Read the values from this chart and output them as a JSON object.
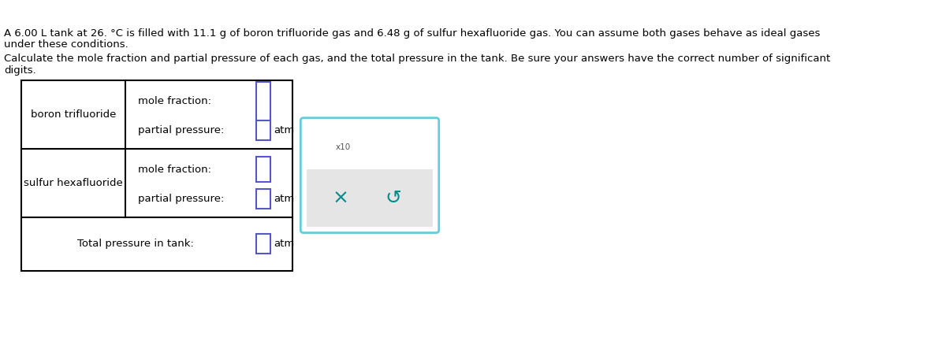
{
  "title_line1": "A 6.00 L tank at 26. °C is filled with 11.1 g of boron trifluoride gas and 6.48 g of sulfur hexafluoride gas. You can assume both gases behave as ideal gases",
  "title_line2": "under these conditions.",
  "subtitle": "Calculate the mole fraction and partial pressure of each gas, and the total pressure in the tank. Be sure your answers have the correct number of significant",
  "subtitle_line2": "digits.",
  "gas1": "boron trifluoride",
  "gas2": "sulfur hexafluoride",
  "mole_fraction_label": "mole fraction:",
  "partial_pressure_label": "partial pressure:",
  "total_pressure_label": "Total pressure in tank:",
  "atm_label": "atm",
  "x10_label": "x10",
  "input_box_color": "#5555cc",
  "input_box_color_tall": "#5555cc",
  "teal_color": "#008B8B",
  "popup_border_color": "#66ccdd",
  "popup_button_bg": "#e0e0e0",
  "text_color": "#000000",
  "font_size_main": 9.5,
  "font_size_small": 7.5
}
